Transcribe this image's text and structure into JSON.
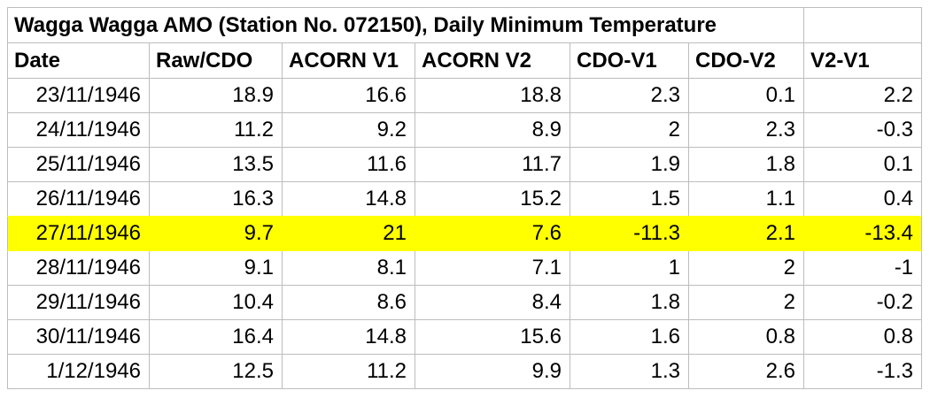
{
  "table": {
    "title": "Wagga Wagga AMO (Station No. 072150), Daily Minimum Temperature",
    "columns": [
      "Date",
      "Raw/CDO",
      "ACORN V1",
      "ACORN V2",
      "CDO-V1",
      "CDO-V2",
      "V2-V1"
    ],
    "rows": [
      {
        "cells": [
          "23/11/1946",
          "18.9",
          "16.6",
          "18.8",
          "2.3",
          "0.1",
          "2.2"
        ],
        "highlighted": false
      },
      {
        "cells": [
          "24/11/1946",
          "11.2",
          "9.2",
          "8.9",
          "2",
          "2.3",
          "-0.3"
        ],
        "highlighted": false
      },
      {
        "cells": [
          "25/11/1946",
          "13.5",
          "11.6",
          "11.7",
          "1.9",
          "1.8",
          "0.1"
        ],
        "highlighted": false
      },
      {
        "cells": [
          "26/11/1946",
          "16.3",
          "14.8",
          "15.2",
          "1.5",
          "1.1",
          "0.4"
        ],
        "highlighted": false
      },
      {
        "cells": [
          "27/11/1946",
          "9.7",
          "21",
          "7.6",
          "-11.3",
          "2.1",
          "-13.4"
        ],
        "highlighted": true
      },
      {
        "cells": [
          "28/11/1946",
          "9.1",
          "8.1",
          "7.1",
          "1",
          "2",
          "-1"
        ],
        "highlighted": false
      },
      {
        "cells": [
          "29/11/1946",
          "10.4",
          "8.6",
          "8.4",
          "1.8",
          "2",
          "-0.2"
        ],
        "highlighted": false
      },
      {
        "cells": [
          "30/11/1946",
          "16.4",
          "14.8",
          "15.6",
          "1.6",
          "0.8",
          "0.8"
        ],
        "highlighted": false
      },
      {
        "cells": [
          "1/12/1946",
          "12.5",
          "11.2",
          "9.9",
          "1.3",
          "2.6",
          "-1.3"
        ],
        "highlighted": false
      }
    ],
    "highlight_color": "#ffff00",
    "grid_color": "#bdbdbd"
  },
  "chart_data": {
    "type": "table",
    "title": "Wagga Wagga AMO (Station No. 072150), Daily Minimum Temperature",
    "columns": [
      "Date",
      "Raw/CDO",
      "ACORN V1",
      "ACORN V2",
      "CDO-V1",
      "CDO-V2",
      "V2-V1"
    ],
    "rows": [
      [
        "23/11/1946",
        18.9,
        16.6,
        18.8,
        2.3,
        0.1,
        2.2
      ],
      [
        "24/11/1946",
        11.2,
        9.2,
        8.9,
        2,
        2.3,
        -0.3
      ],
      [
        "25/11/1946",
        13.5,
        11.6,
        11.7,
        1.9,
        1.8,
        0.1
      ],
      [
        "26/11/1946",
        16.3,
        14.8,
        15.2,
        1.5,
        1.1,
        0.4
      ],
      [
        "27/11/1946",
        9.7,
        21,
        7.6,
        -11.3,
        2.1,
        -13.4
      ],
      [
        "28/11/1946",
        9.1,
        8.1,
        7.1,
        1,
        2,
        -1
      ],
      [
        "29/11/1946",
        10.4,
        8.6,
        8.4,
        1.8,
        2,
        -0.2
      ],
      [
        "30/11/1946",
        16.4,
        14.8,
        15.6,
        1.6,
        0.8,
        0.8
      ],
      [
        "1/12/1946",
        12.5,
        11.2,
        9.9,
        1.3,
        2.6,
        -1.3
      ]
    ],
    "highlighted_row": "27/11/1946"
  }
}
